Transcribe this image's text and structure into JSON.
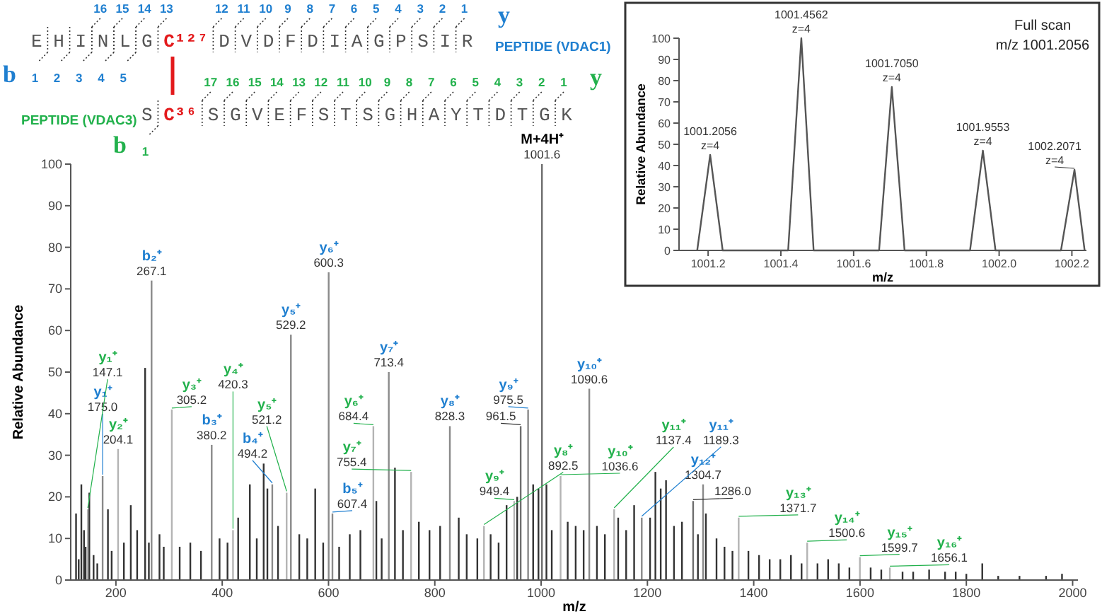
{
  "chart_data": [
    {
      "type": "bar",
      "xlabel": "m/z",
      "ylabel": "Relative Abundance",
      "xlim": [
        115,
        2010
      ],
      "ylim": [
        0,
        100
      ],
      "xticks": [
        200,
        400,
        600,
        800,
        1000,
        1200,
        1400,
        1600,
        1800,
        2000
      ],
      "yticks": [
        0,
        10,
        20,
        30,
        40,
        50,
        60,
        70,
        80,
        90,
        100
      ],
      "series": [
        {
          "color": "#8a8a8a",
          "x": [
            175.0,
            267.1,
            380.2,
            494.2,
            529.2,
            600.3,
            607.4,
            713.4,
            828.3,
            975.5,
            1090.6,
            1189.3,
            1304.7
          ],
          "values": [
            25,
            72,
            32.5,
            23,
            59,
            74,
            16,
            50,
            37,
            41,
            46,
            15,
            23
          ]
        },
        {
          "color": "#b4b4b4",
          "x": [
            147.1,
            204.1,
            305.2,
            420.3,
            521.2,
            684.4,
            755.4,
            892.5,
            949.4,
            1036.6,
            1137.4,
            1371.7,
            1500.6,
            1599.7,
            1656.1
          ],
          "values": [
            17,
            31.5,
            41,
            12,
            21,
            37,
            26,
            13,
            19,
            25,
            17,
            15,
            9,
            5.5,
            3
          ]
        },
        {
          "color": "#6e6e6e",
          "x": [
            961.5,
            1001.6,
            1286.0
          ],
          "values": [
            37,
            100,
            19
          ]
        },
        {
          "color": "#333333",
          "x": [
            125,
            130,
            135,
            140,
            143,
            150,
            158,
            165,
            185,
            192,
            215,
            228,
            240,
            255,
            262,
            282,
            290,
            320,
            340,
            360,
            395,
            410,
            430,
            452,
            465,
            478,
            485,
            505,
            545,
            560,
            575,
            590,
            620,
            640,
            660,
            690,
            700,
            725,
            740,
            770,
            790,
            810,
            845,
            860,
            880,
            905,
            920,
            935,
            955,
            985,
            995,
            1010,
            1020,
            1050,
            1065,
            1080,
            1105,
            1120,
            1145,
            1160,
            1175,
            1205,
            1215,
            1225,
            1235,
            1250,
            1265,
            1295,
            1310,
            1330,
            1345,
            1360,
            1390,
            1410,
            1430,
            1450,
            1470,
            1490,
            1520,
            1540,
            1560,
            1580,
            1620,
            1640,
            1680,
            1700,
            1730,
            1760,
            1780,
            1800,
            1830,
            1860,
            1900,
            1950,
            1980
          ],
          "values": [
            16,
            5,
            23,
            12,
            8,
            21,
            6,
            4,
            17,
            7,
            9,
            18,
            12,
            51,
            9,
            11,
            8,
            8,
            9,
            7,
            10,
            9,
            15,
            23,
            10,
            28,
            22,
            13,
            11,
            10,
            22,
            9,
            8,
            11,
            12,
            19,
            10,
            27,
            12,
            14,
            12,
            13,
            15,
            11,
            10,
            11,
            9,
            18,
            20,
            23,
            22,
            23,
            12,
            14,
            13,
            12,
            13,
            11,
            15,
            12,
            18,
            15,
            26,
            22,
            24,
            13,
            14,
            11,
            16,
            10,
            8,
            7,
            7,
            6,
            5,
            5,
            6,
            4,
            4,
            5,
            4,
            3,
            3,
            2.5,
            2,
            2,
            2.5,
            2,
            2,
            1.5,
            4,
            1,
            1,
            1,
            1.5
          ]
        }
      ],
      "annotations": [
        "y",
        "16 15 14 13 12 11 10 9 8 7 6 5 4 3 2 1",
        "E H I N L G C¹²⁷ D V D F D I A G P S I R",
        "PEPTIDE (VDAC1)",
        "b",
        "1 2 3 4 5",
        "17 16 15 14 13 12 11 10 9 8 7 6 5 4 3 2 1",
        "y",
        "PEPTIDE (VDAC3)",
        "S C³⁶ S G V E F S T S G H A Y T D T G K",
        "b",
        "1",
        {
          "text": "y₁⁺",
          "x": 147.1,
          "y": 17
        },
        {
          "text": "147.1",
          "x": 147.1,
          "y": 17
        },
        {
          "text": "y₁⁺",
          "x": 175.0,
          "y": 25
        },
        {
          "text": "175.0",
          "x": 175.0,
          "y": 25
        },
        {
          "text": "y₂⁺",
          "x": 204.1,
          "y": 31.5
        },
        {
          "text": "204.1",
          "x": 204.1,
          "y": 31.5
        },
        {
          "text": "b₂⁺",
          "x": 267.1,
          "y": 72
        },
        {
          "text": "267.1",
          "x": 267.1,
          "y": 72
        },
        {
          "text": "y₃⁺",
          "x": 305.2,
          "y": 41
        },
        {
          "text": "305.2",
          "x": 305.2,
          "y": 41
        },
        {
          "text": "b₃⁺",
          "x": 380.2,
          "y": 32.5
        },
        {
          "text": "380.2",
          "x": 380.2,
          "y": 32.5
        },
        {
          "text": "y₄⁺",
          "x": 420.3,
          "y": 12
        },
        {
          "text": "420.3",
          "x": 420.3,
          "y": 12
        },
        {
          "text": "b₄⁺",
          "x": 494.2,
          "y": 23
        },
        {
          "text": "494.2",
          "x": 494.2,
          "y": 23
        },
        {
          "text": "y₅⁺",
          "x": 521.2,
          "y": 21
        },
        {
          "text": "521.2",
          "x": 521.2,
          "y": 21
        },
        {
          "text": "y₅⁺",
          "x": 529.2,
          "y": 59
        },
        {
          "text": "529.2",
          "x": 529.2,
          "y": 59
        },
        {
          "text": "y₆⁺",
          "x": 600.3,
          "y": 74
        },
        {
          "text": "600.3",
          "x": 600.3,
          "y": 74
        },
        {
          "text": "b₅⁺",
          "x": 607.4,
          "y": 16
        },
        {
          "text": "607.4",
          "x": 607.4,
          "y": 16
        },
        {
          "text": "y₆⁺",
          "x": 684.4,
          "y": 37
        },
        {
          "text": "684.4",
          "x": 684.4,
          "y": 37
        },
        {
          "text": "y₇⁺",
          "x": 713.4,
          "y": 50
        },
        {
          "text": "713.4",
          "x": 713.4,
          "y": 50
        },
        {
          "text": "y₇⁺",
          "x": 755.4,
          "y": 26
        },
        {
          "text": "755.4",
          "x": 755.4,
          "y": 26
        },
        {
          "text": "y₈⁺",
          "x": 828.3,
          "y": 37
        },
        {
          "text": "828.3",
          "x": 828.3,
          "y": 37
        },
        {
          "text": "y₈⁺",
          "x": 892.5,
          "y": 13
        },
        {
          "text": "892.5",
          "x": 892.5,
          "y": 13
        },
        {
          "text": "y₉⁺",
          "x": 949.4,
          "y": 19
        },
        {
          "text": "949.4",
          "x": 949.4,
          "y": 19
        },
        {
          "text": "961.5",
          "x": 961.5,
          "y": 37
        },
        {
          "text": "y₉⁺",
          "x": 975.5,
          "y": 41
        },
        {
          "text": "975.5",
          "x": 975.5,
          "y": 41
        },
        {
          "text": "M+4H⁺",
          "x": 1001.6,
          "y": 100
        },
        {
          "text": "1001.6",
          "x": 1001.6,
          "y": 100
        },
        {
          "text": "y₁₀⁺",
          "x": 1036.6,
          "y": 25
        },
        {
          "text": "1036.6",
          "x": 1036.6,
          "y": 25
        },
        {
          "text": "y₁₀⁺",
          "x": 1090.6,
          "y": 46
        },
        {
          "text": "1090.6",
          "x": 1090.6,
          "y": 46
        },
        {
          "text": "y₁₁⁺",
          "x": 1137.4,
          "y": 17
        },
        {
          "text": "1137.4",
          "x": 1137.4,
          "y": 17
        },
        {
          "text": "y₁₁⁺",
          "x": 1189.3,
          "y": 15
        },
        {
          "text": "1189.3",
          "x": 1189.3,
          "y": 15
        },
        {
          "text": "1286.0",
          "x": 1286.0,
          "y": 19
        },
        {
          "text": "y₁₂⁺",
          "x": 1304.7,
          "y": 23
        },
        {
          "text": "1304.7",
          "x": 1304.7,
          "y": 23
        },
        {
          "text": "y₁₃⁺",
          "x": 1371.7,
          "y": 15
        },
        {
          "text": "1371.7",
          "x": 1371.7,
          "y": 15
        },
        {
          "text": "y₁₄⁺",
          "x": 1500.6,
          "y": 9
        },
        {
          "text": "1500.6",
          "x": 1500.6,
          "y": 9
        },
        {
          "text": "y₁₅⁺",
          "x": 1599.7,
          "y": 5.5
        },
        {
          "text": "1599.7",
          "x": 1599.7,
          "y": 5.5
        },
        {
          "text": "y₁₆⁺",
          "x": 1656.1,
          "y": 3
        },
        {
          "text": "1656.1",
          "x": 1656.1,
          "y": 3
        }
      ]
    },
    {
      "type": "line",
      "xlabel": "m/z",
      "ylabel": "Relative Abundance",
      "xlim": [
        1001.12,
        1002.24
      ],
      "ylim": [
        0,
        100
      ],
      "xticks": [
        1001.2,
        1001.4,
        1001.6,
        1001.8,
        {
          "value": 1002,
          "label": "1002.0"
        },
        1002.2
      ],
      "yticks": [
        0,
        10,
        20,
        30,
        40,
        50,
        60,
        70,
        80,
        90,
        100
      ],
      "series": [
        {
          "color": "#555555",
          "x": [
            1001.17,
            1001.2056,
            1001.24,
            1001.42,
            1001.4562,
            1001.49,
            1001.67,
            1001.705,
            1001.74,
            1001.92,
            1001.9553,
            1001.99,
            1002.17,
            1002.2071,
            1002.235
          ],
          "values": [
            0,
            45,
            0,
            0,
            100,
            0,
            0,
            77,
            0,
            0,
            47,
            0,
            0,
            38,
            0
          ]
        }
      ],
      "annotations": [
        "Full scan",
        "m/z 1001.2056",
        {
          "text": "1001.2056",
          "x": 1001.2056,
          "y": 45
        },
        {
          "text": "z=4",
          "x": 1001.2056,
          "y": 45
        },
        {
          "text": "1001.4562",
          "x": 1001.4562,
          "y": 100
        },
        {
          "text": "z=4",
          "x": 1001.4562,
          "y": 100
        },
        {
          "text": "1001.7050",
          "x": 1001.705,
          "y": 77
        },
        {
          "text": "z=4",
          "x": 1001.705,
          "y": 77
        },
        {
          "text": "1001.9553",
          "x": 1001.9553,
          "y": 47
        },
        {
          "text": "z=4",
          "x": 1001.9553,
          "y": 47
        },
        {
          "text": "1002.2071",
          "x": 1002.2071,
          "y": 38
        },
        {
          "text": "z=4",
          "x": 1002.2071,
          "y": 38
        }
      ]
    }
  ]
}
